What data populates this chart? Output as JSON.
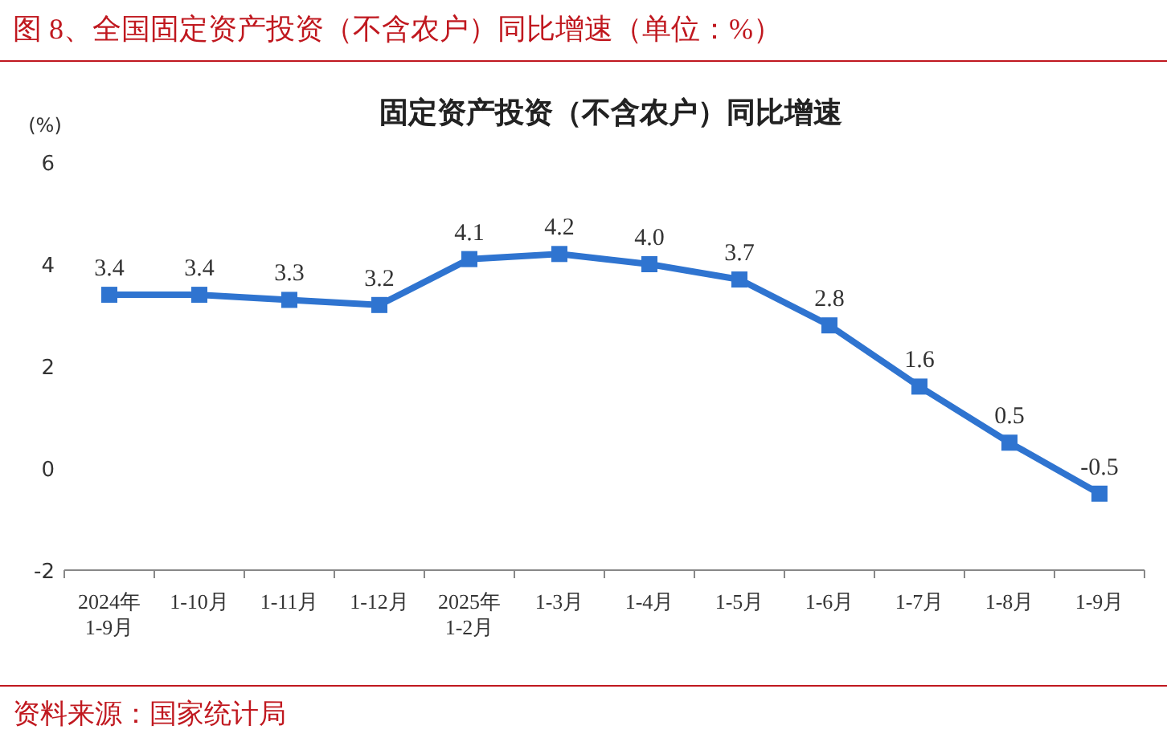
{
  "chart_data": {
    "type": "line",
    "title": "图 8、全国固定资产投资（不含农户）同比增速（单位：%）",
    "subtitle": "固定资产投资（不含农户）同比增速",
    "ylabel": "(%)",
    "categories": [
      "2024年 1-9月",
      "1-10月",
      "1-11月",
      "1-12月",
      "2025年 1-2月",
      "1-3月",
      "1-4月",
      "1-5月",
      "1-6月",
      "1-7月",
      "1-8月",
      "1-9月"
    ],
    "values": [
      3.4,
      3.4,
      3.3,
      3.2,
      4.1,
      4.2,
      4.0,
      3.7,
      2.8,
      1.6,
      0.5,
      -0.5
    ],
    "value_labels": [
      "3.4",
      "3.4",
      "3.3",
      "3.2",
      "4.1",
      "4.2",
      "4.0",
      "3.7",
      "2.8",
      "1.6",
      "0.5",
      "-0.5"
    ],
    "color": "#2f74d0",
    "marker": "square",
    "grid": false,
    "ylim": [
      -2,
      6
    ],
    "yticks": [
      -2,
      0,
      2,
      4,
      6
    ],
    "annotations": [
      "资料来源：国家统计局"
    ]
  }
}
